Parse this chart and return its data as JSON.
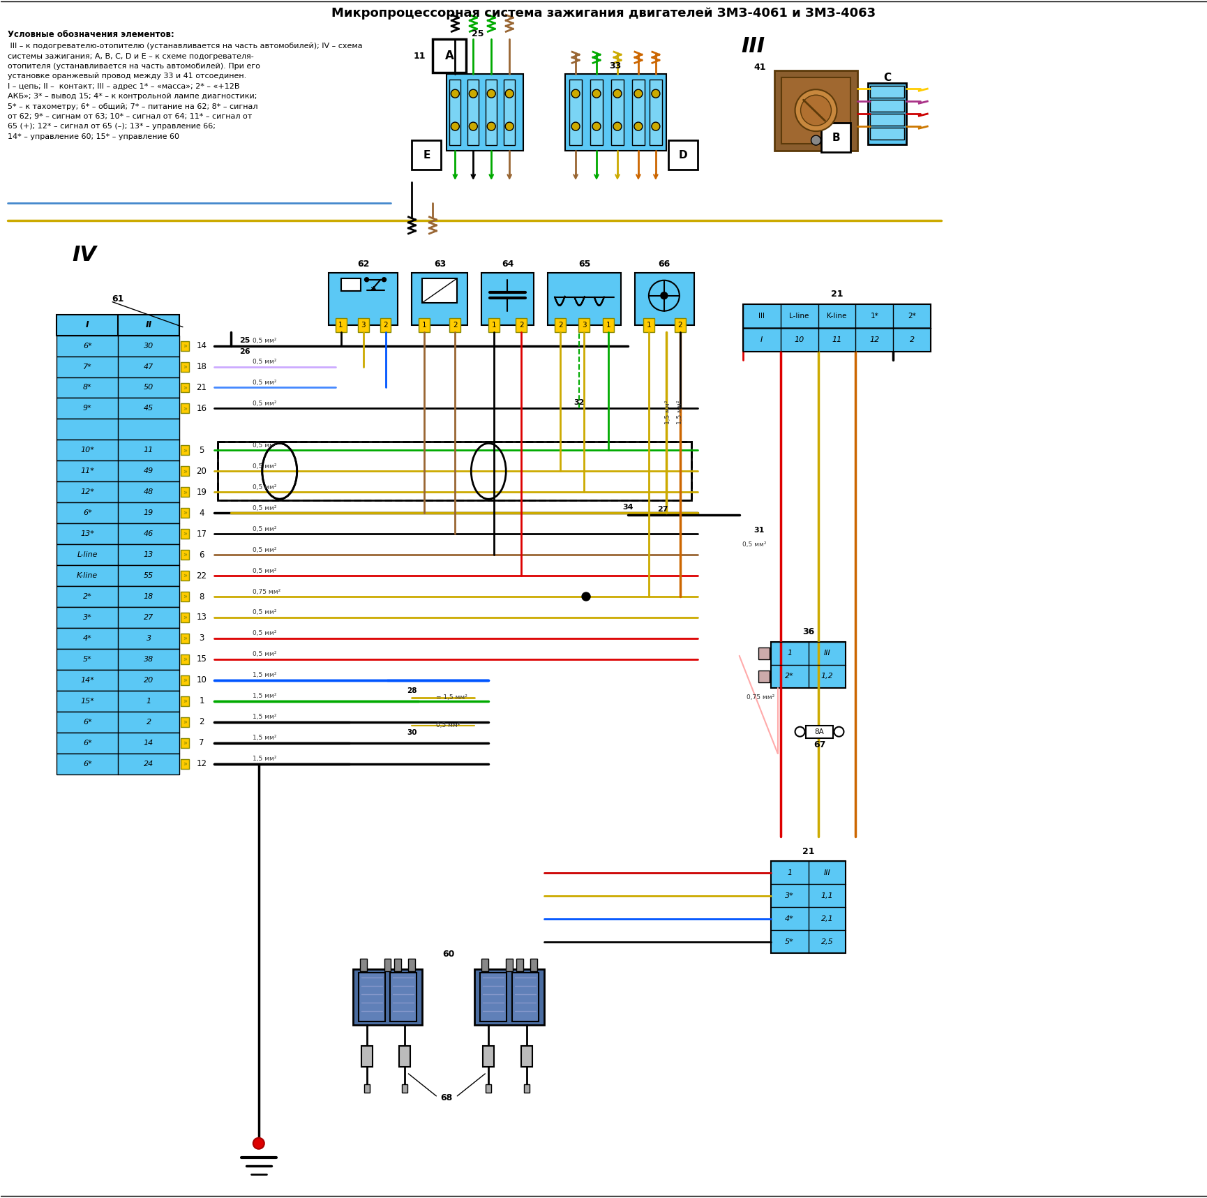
{
  "title": "Микропроцессорная система зажигания двигателей ЗМЗ-4061 и ЗМЗ-4063",
  "bg_color": "#ffffff",
  "conn61_rows": [
    [
      "I",
      "II"
    ],
    [
      "6*",
      "30"
    ],
    [
      "7*",
      "47"
    ],
    [
      "8*",
      "50"
    ],
    [
      "9*",
      "45"
    ],
    [
      "",
      ""
    ],
    [
      "10*",
      "11"
    ],
    [
      "11*",
      "49"
    ],
    [
      "12*",
      "48"
    ],
    [
      "6*",
      "19"
    ],
    [
      "13*",
      "46"
    ],
    [
      "L-line",
      "13"
    ],
    [
      "K-line",
      "55"
    ],
    [
      "2*",
      "18"
    ],
    [
      "3*",
      "27"
    ],
    [
      "4*",
      "3"
    ],
    [
      "5*",
      "38"
    ],
    [
      "14*",
      "20"
    ],
    [
      "15*",
      "1"
    ],
    [
      "6*",
      "2"
    ],
    [
      "6*",
      "14"
    ],
    [
      "6*",
      "24"
    ]
  ],
  "conn21_top": [
    [
      "III",
      "L-line",
      "K-line",
      "1*",
      "2*"
    ],
    [
      "I",
      "10",
      "11",
      "12",
      "2"
    ]
  ],
  "conn21_bot": [
    [
      "1",
      "III"
    ],
    [
      "3*",
      "1,1"
    ],
    [
      "4*",
      "2,1"
    ],
    [
      "5*",
      "2,5"
    ]
  ],
  "conn36": [
    [
      "1",
      "III"
    ],
    [
      "2*",
      "1,2"
    ]
  ],
  "legend_bold": "Условные обозначения элементов:",
  "legend_body": " III – к подогревателю-отопителю (устанавливается на часть автомобилей); IV – схема\nсистемы зажигания; A, B, C, D и E – к схеме подогревателя-\nотопителя (устанавливается на часть автомобилей). При его\nустановке оранжевый провод между 33 и 41 отсоединен.\nI – цепь; II –  контакт; III – адрес 1* – «масса»; 2* – «+12В\nАКБ»; 3* – вывод 15; 4* – к контрольной лампе диагностики;\n5* – к тахометру; 6* – общий; 7* – питание на 62; 8* – сигнал\nот 62; 9* – сигнал от 63; 10* – сигнал от 64; 11* – сигнал от\n65 (+); 12* – сигнал от 65 (–); 13* – управление 66;\n14* – управление 60; 15* – управмение 60"
}
